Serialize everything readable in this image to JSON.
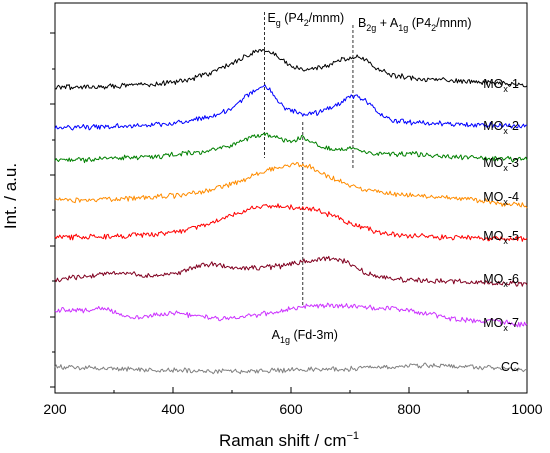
{
  "chart_data": {
    "type": "line",
    "xlabel": "Raman shift / cm",
    "xlabel_exponent": "−1",
    "ylabel": "Int. / a.u.",
    "xlim": [
      200,
      1000
    ],
    "xticks": [
      "200",
      "400",
      "600",
      "800",
      "1000"
    ],
    "y_ticks_labeled": false,
    "grid": false,
    "legend": "none (series labelled at right end of each trace)",
    "series": [
      {
        "name": "MOx-1",
        "label_main": "MO",
        "label_sub": "x",
        "label_tail": "-1",
        "color": "#000000",
        "offset": 7,
        "x": [
          200,
          260,
          320,
          380,
          420,
          460,
          500,
          530,
          555,
          575,
          600,
          625,
          650,
          675,
          700,
          720,
          740,
          770,
          810,
          860,
          920,
          1000
        ],
        "y": [
          0.02,
          0.03,
          0.06,
          0.12,
          0.22,
          0.4,
          0.68,
          0.95,
          1.05,
          0.9,
          0.6,
          0.52,
          0.58,
          0.72,
          0.86,
          0.84,
          0.6,
          0.36,
          0.26,
          0.22,
          0.17,
          0.08
        ]
      },
      {
        "name": "MOx-2",
        "label_main": "MO",
        "label_sub": "x",
        "label_tail": "-2",
        "color": "#0000ff",
        "offset": 6,
        "x": [
          200,
          260,
          320,
          380,
          420,
          460,
          500,
          530,
          555,
          570,
          590,
          620,
          650,
          680,
          700,
          715,
          730,
          745,
          770,
          810,
          860,
          920,
          1000
        ],
        "y": [
          0.0,
          0.02,
          0.05,
          0.1,
          0.18,
          0.3,
          0.55,
          0.95,
          1.2,
          0.95,
          0.55,
          0.38,
          0.44,
          0.68,
          0.88,
          0.85,
          0.72,
          0.45,
          0.2,
          0.14,
          0.12,
          0.09,
          0.04
        ]
      },
      {
        "name": "MOx-3",
        "label_main": "MO",
        "label_sub": "x",
        "label_tail": "-3",
        "color": "#008000",
        "offset": 5,
        "x": [
          200,
          260,
          320,
          380,
          420,
          460,
          500,
          530,
          555,
          580,
          600,
          620,
          650,
          680,
          705,
          730,
          760,
          800,
          860,
          920,
          1000
        ],
        "y": [
          0.02,
          0.04,
          0.08,
          0.14,
          0.2,
          0.28,
          0.44,
          0.62,
          0.78,
          0.6,
          0.55,
          0.65,
          0.4,
          0.3,
          0.38,
          0.22,
          0.18,
          0.2,
          0.12,
          0.08,
          0.04
        ]
      },
      {
        "name": "MOx-4",
        "label_main": "MO",
        "label_sub": "x",
        "label_tail": "-4",
        "color": "#ff8c00",
        "offset": 4,
        "x": [
          200,
          260,
          320,
          380,
          420,
          460,
          500,
          530,
          560,
          590,
          615,
          640,
          670,
          700,
          730,
          780,
          840,
          900,
          950,
          1000
        ],
        "y": [
          0.02,
          0.04,
          0.07,
          0.12,
          0.18,
          0.3,
          0.48,
          0.66,
          0.85,
          0.98,
          1.02,
          0.9,
          0.62,
          0.44,
          0.3,
          0.18,
          0.12,
          0.06,
          -0.06,
          -0.12
        ]
      },
      {
        "name": "MOx-5",
        "label_main": "MO",
        "label_sub": "x",
        "label_tail": "-5",
        "color": "#ff0000",
        "offset": 3,
        "x": [
          200,
          260,
          320,
          380,
          420,
          460,
          500,
          530,
          560,
          590,
          615,
          640,
          670,
          700,
          730,
          760,
          800,
          860,
          920,
          1000
        ],
        "y": [
          0.02,
          0.03,
          0.06,
          0.12,
          0.22,
          0.4,
          0.62,
          0.8,
          0.9,
          0.85,
          0.86,
          0.8,
          0.62,
          0.4,
          0.24,
          0.12,
          0.06,
          0.02,
          0.0,
          -0.04
        ]
      },
      {
        "name": "MOx-6",
        "label_main": "MO",
        "label_sub": "x",
        "label_tail": "-6",
        "color": "#800020",
        "offset": 2,
        "x": [
          200,
          240,
          290,
          330,
          380,
          420,
          450,
          470,
          500,
          540,
          580,
          620,
          650,
          670,
          690,
          710,
          730,
          760,
          800,
          860,
          920,
          1000
        ],
        "y": [
          0.05,
          0.14,
          0.24,
          0.22,
          0.16,
          0.3,
          0.48,
          0.5,
          0.4,
          0.38,
          0.44,
          0.56,
          0.64,
          0.66,
          0.58,
          0.42,
          0.22,
          0.1,
          0.04,
          0.02,
          0.0,
          -0.06
        ]
      },
      {
        "name": "MOx-7",
        "label_main": "MO",
        "label_sub": "x",
        "label_tail": "-7",
        "color": "#cc33ff",
        "offset": 1,
        "x": [
          200,
          240,
          285,
          330,
          360,
          400,
          440,
          480,
          520,
          560,
          590,
          620,
          650,
          690,
          740,
          800,
          840,
          880,
          940,
          1000
        ],
        "y": [
          0.42,
          0.4,
          0.46,
          0.2,
          0.26,
          0.34,
          0.24,
          0.18,
          0.22,
          0.32,
          0.42,
          0.5,
          0.54,
          0.52,
          0.48,
          0.4,
          0.3,
          0.16,
          0.1,
          0.0
        ]
      },
      {
        "name": "CC",
        "label_main": "CC",
        "label_sub": "",
        "label_tail": "",
        "color": "#808080",
        "offset": 0,
        "x": [
          200,
          260,
          330,
          400,
          460,
          520,
          580,
          640,
          700,
          760,
          800,
          840,
          880,
          940,
          1000
        ],
        "y": [
          0.12,
          0.08,
          0.05,
          0.02,
          0.0,
          0.0,
          0.02,
          0.04,
          0.06,
          0.1,
          0.14,
          0.16,
          0.14,
          0.08,
          0.02
        ]
      }
    ],
    "annotations": [
      {
        "x": 555,
        "main": "E",
        "sub": "g",
        "tail": " (P4",
        "sub2": "2",
        "tail2": "/mnm)"
      },
      {
        "x": 705,
        "main": "B",
        "sub": "2g",
        "tail": " + A",
        "sub2": "1g",
        "tail2": " (P4",
        "sub3": "2",
        "tail3": "/mnm)"
      },
      {
        "x": 620,
        "main": "A",
        "sub": "1g",
        "tail": " (Fd-3m)"
      }
    ]
  }
}
